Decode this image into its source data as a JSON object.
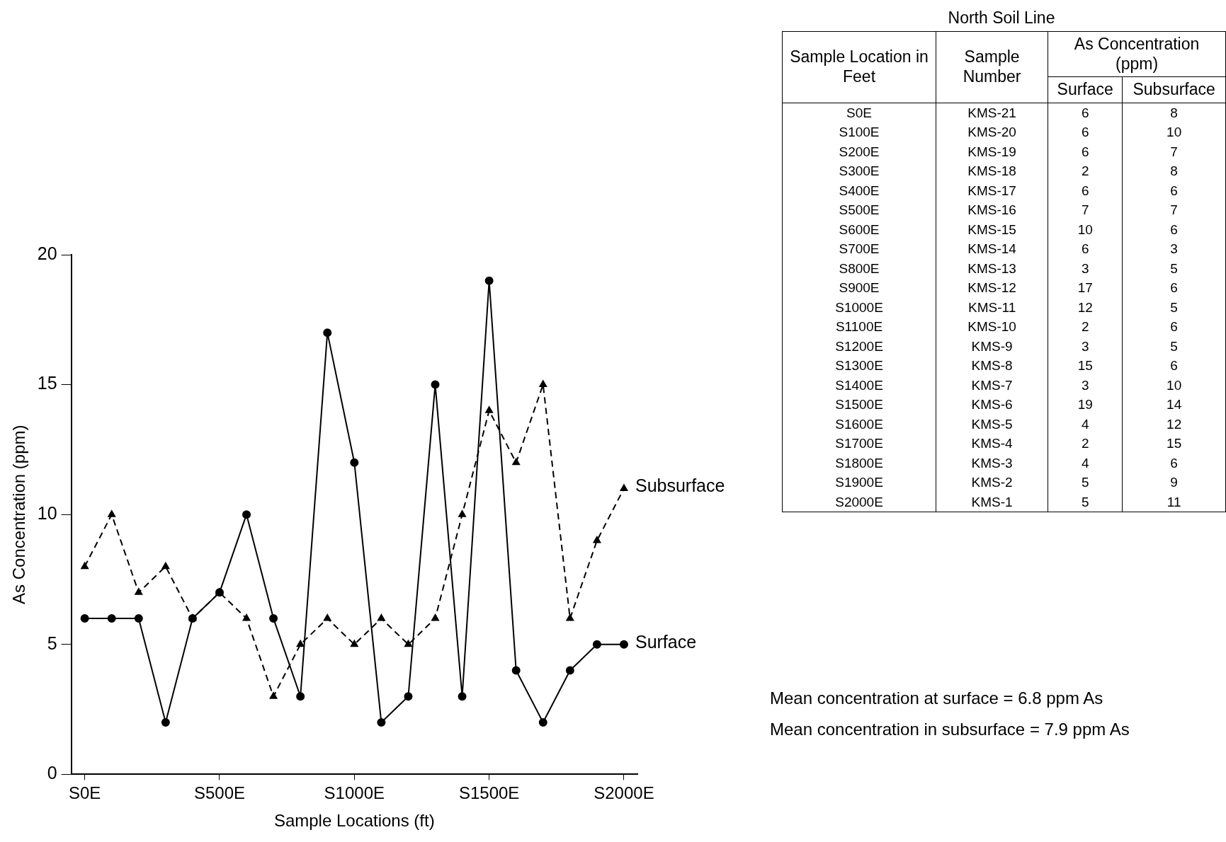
{
  "chart_data": [
    {
      "type": "line",
      "xlabel": "Sample Locations (ft)",
      "ylabel": "As Concentration (ppm)",
      "categories": [
        "S0E",
        null,
        null,
        null,
        null,
        "S500E",
        null,
        null,
        null,
        null,
        "S1000E",
        null,
        null,
        null,
        null,
        "S1500E",
        null,
        null,
        null,
        null,
        "S2000E"
      ],
      "series": [
        {
          "name": "Surface",
          "color": "#000000",
          "marker": "circle",
          "line_style": "solid",
          "values": [
            6,
            6,
            6,
            2,
            6,
            7,
            10,
            6,
            3,
            17,
            12,
            2,
            3,
            15,
            3,
            19,
            4,
            2,
            4,
            5,
            5
          ]
        },
        {
          "name": "Subsurface",
          "color": "#000000",
          "marker": "triangle",
          "line_style": "dashed",
          "values": [
            8,
            10,
            7,
            8,
            6,
            7,
            6,
            3,
            5,
            6,
            5,
            6,
            5,
            6,
            10,
            14,
            12,
            15,
            6,
            9,
            11
          ]
        }
      ],
      "ylim": [
        0,
        20
      ],
      "yticks": [
        0,
        5,
        10,
        15,
        20
      ]
    },
    {
      "type": "other",
      "title": "North Soil Line",
      "categories": [
        "S0E",
        "S100E",
        "S200E",
        "S300E",
        "S400E",
        "S500E",
        "S600E",
        "S700E",
        "S800E",
        "S900E",
        "S1000E",
        "S1100E",
        "S1200E",
        "S1300E",
        "S1400E",
        "S1500E",
        "S1600E",
        "S1700E",
        "S1800E",
        "S1900E",
        "S2000E"
      ],
      "series": [
        {
          "name": "Surface",
          "values": [
            6,
            6,
            6,
            2,
            6,
            7,
            10,
            6,
            3,
            17,
            12,
            2,
            3,
            15,
            3,
            19,
            4,
            2,
            4,
            5,
            5
          ]
        },
        {
          "name": "Subsurface",
          "values": [
            8,
            10,
            7,
            8,
            6,
            7,
            6,
            3,
            5,
            6,
            5,
            6,
            5,
            6,
            10,
            14,
            12,
            15,
            6,
            9,
            11
          ]
        }
      ],
      "data_labels": true,
      "annotations": [
        "Sample Location in Feet",
        "Sample Number",
        "As Concentration (ppm)",
        "KMS-21",
        "KMS-20",
        "KMS-19",
        "KMS-18",
        "KMS-17",
        "KMS-16",
        "KMS-15",
        "KMS-14",
        "KMS-13",
        "KMS-12",
        "KMS-11",
        "KMS-10",
        "KMS-9",
        "KMS-8",
        "KMS-7",
        "KMS-6",
        "KMS-5",
        "KMS-4",
        "KMS-3",
        "KMS-2",
        "KMS-1",
        "Mean concentration at surface = 6.8 ppm As",
        "Mean concentration in subsurface = 7.9 ppm As"
      ]
    }
  ]
}
